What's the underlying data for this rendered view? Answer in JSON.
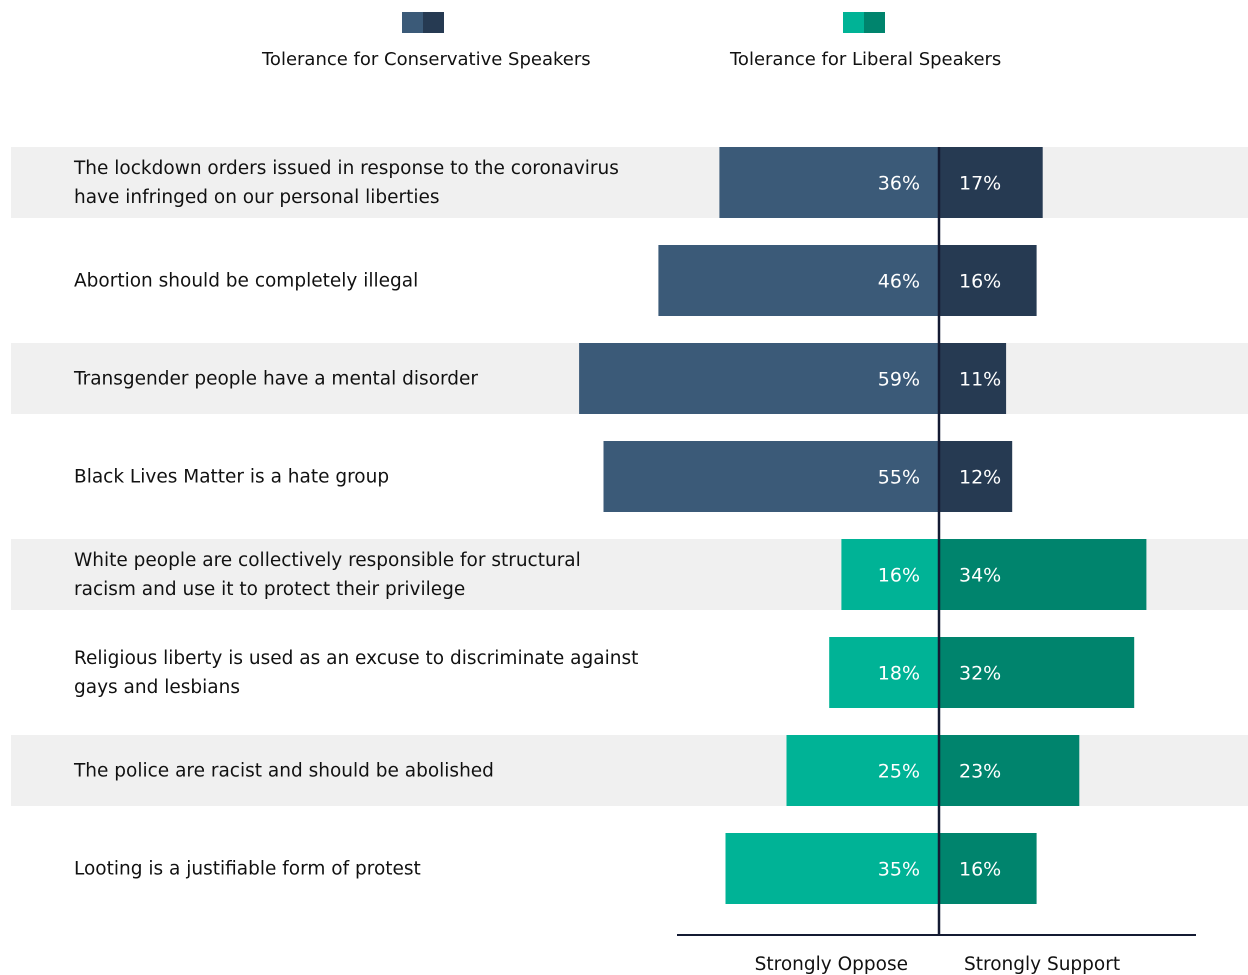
{
  "legend": {
    "conservative": {
      "label": "Tolerance for Conservative Speakers",
      "colors": [
        "#3b5a78",
        "#263a52"
      ]
    },
    "liberal": {
      "label": "Tolerance for Liberal Speakers",
      "colors": [
        "#00b396",
        "#00846d"
      ]
    }
  },
  "chart_data": {
    "type": "bar",
    "orientation": "horizontal-diverging",
    "categories": [
      [
        "The lockdown orders issued in response to the coronavirus",
        "have infringed on our personal liberties"
      ],
      [
        "Abortion should be completely illegal"
      ],
      [
        "Transgender people have a mental disorder"
      ],
      [
        "Black Lives Matter is a hate group"
      ],
      [
        "White people are collectively responsible for structural",
        "racism and use it to protect their privilege"
      ],
      [
        "Religious liberty is used as an excuse to discriminate against",
        "gays and lesbians"
      ],
      [
        "The police are racist and should be abolished"
      ],
      [
        "Looting is a justifiable form of protest"
      ]
    ],
    "group": [
      "conservative",
      "conservative",
      "conservative",
      "conservative",
      "liberal",
      "liberal",
      "liberal",
      "liberal"
    ],
    "series": [
      {
        "name": "Strongly Oppose",
        "values": [
          36,
          46,
          59,
          55,
          16,
          18,
          25,
          35
        ]
      },
      {
        "name": "Strongly Support",
        "values": [
          17,
          16,
          11,
          12,
          34,
          32,
          23,
          16
        ]
      }
    ],
    "value_suffix": "%",
    "xlabel_left": "Strongly Oppose",
    "xlabel_right": "Strongly Support",
    "row_backgrounds": [
      "#f0f0f0",
      "#ffffff",
      "#f0f0f0",
      "#ffffff",
      "#f0f0f0",
      "#ffffff",
      "#f0f0f0",
      "#ffffff"
    ],
    "divider_color": "#141b33"
  }
}
